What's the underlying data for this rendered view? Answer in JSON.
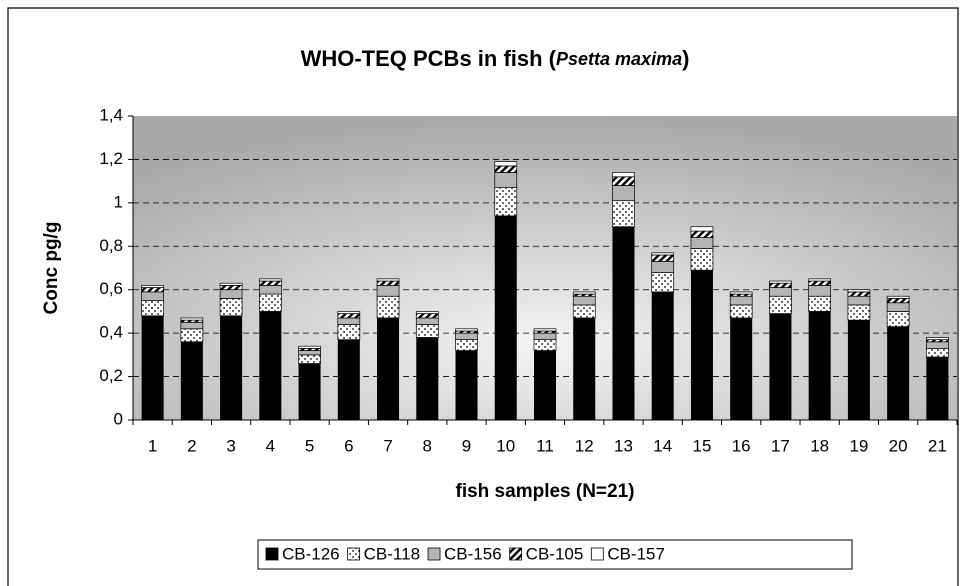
{
  "chart_data": {
    "type": "stacked_bar",
    "title": [
      "WHO-TEQ PCBs in fish (",
      "Psetta maxima",
      ")"
    ],
    "y_label": "Conc pg/g",
    "x_label": "fish samples (N=21)",
    "categories": [
      "1",
      "2",
      "3",
      "4",
      "5",
      "6",
      "7",
      "8",
      "9",
      "10",
      "11",
      "12",
      "13",
      "14",
      "15",
      "16",
      "17",
      "18",
      "19",
      "20",
      "21"
    ],
    "series": [
      {
        "name": "CB-126",
        "color": "#000000",
        "pattern": "solid",
        "values": [
          0.48,
          0.36,
          0.48,
          0.5,
          0.26,
          0.37,
          0.47,
          0.38,
          0.32,
          0.94,
          0.32,
          0.47,
          0.89,
          0.59,
          0.69,
          0.47,
          0.49,
          0.5,
          0.46,
          0.43,
          0.29
        ]
      },
      {
        "name": "CB-118",
        "color": "#ffffff",
        "pattern": "dots",
        "values": [
          0.07,
          0.06,
          0.08,
          0.08,
          0.04,
          0.07,
          0.1,
          0.06,
          0.05,
          0.13,
          0.05,
          0.06,
          0.12,
          0.09,
          0.1,
          0.06,
          0.08,
          0.07,
          0.07,
          0.07,
          0.04
        ]
      },
      {
        "name": "CB-156",
        "color": "#b4b4b4",
        "pattern": "solid",
        "values": [
          0.04,
          0.03,
          0.04,
          0.04,
          0.02,
          0.03,
          0.05,
          0.03,
          0.03,
          0.07,
          0.03,
          0.04,
          0.07,
          0.05,
          0.05,
          0.04,
          0.04,
          0.05,
          0.04,
          0.04,
          0.03
        ]
      },
      {
        "name": "CB-105",
        "color": "#ffffff",
        "pattern": "hatch",
        "values": [
          0.02,
          0.01,
          0.02,
          0.02,
          0.01,
          0.02,
          0.02,
          0.02,
          0.01,
          0.03,
          0.01,
          0.01,
          0.04,
          0.03,
          0.03,
          0.01,
          0.02,
          0.02,
          0.02,
          0.02,
          0.01
        ]
      },
      {
        "name": "CB-157",
        "color": "#ffffff",
        "pattern": "solid",
        "values": [
          0.01,
          0.01,
          0.01,
          0.01,
          0.01,
          0.01,
          0.01,
          0.01,
          0.01,
          0.02,
          0.01,
          0.01,
          0.02,
          0.01,
          0.02,
          0.01,
          0.01,
          0.01,
          0.01,
          0.01,
          0.01
        ]
      }
    ],
    "ylim": [
      0,
      1.4
    ],
    "yticks": [
      0,
      {
        "value": 0.2,
        "label": "0,2"
      },
      {
        "value": 0.4,
        "label": "0,4"
      },
      {
        "value": 0.6,
        "label": "0,6"
      },
      {
        "value": 0.8,
        "label": "0,8"
      },
      1,
      {
        "value": 1.2,
        "label": "1,2"
      },
      {
        "value": 1.4,
        "label": "1,4"
      }
    ],
    "grid": true,
    "legend": "bottom"
  }
}
